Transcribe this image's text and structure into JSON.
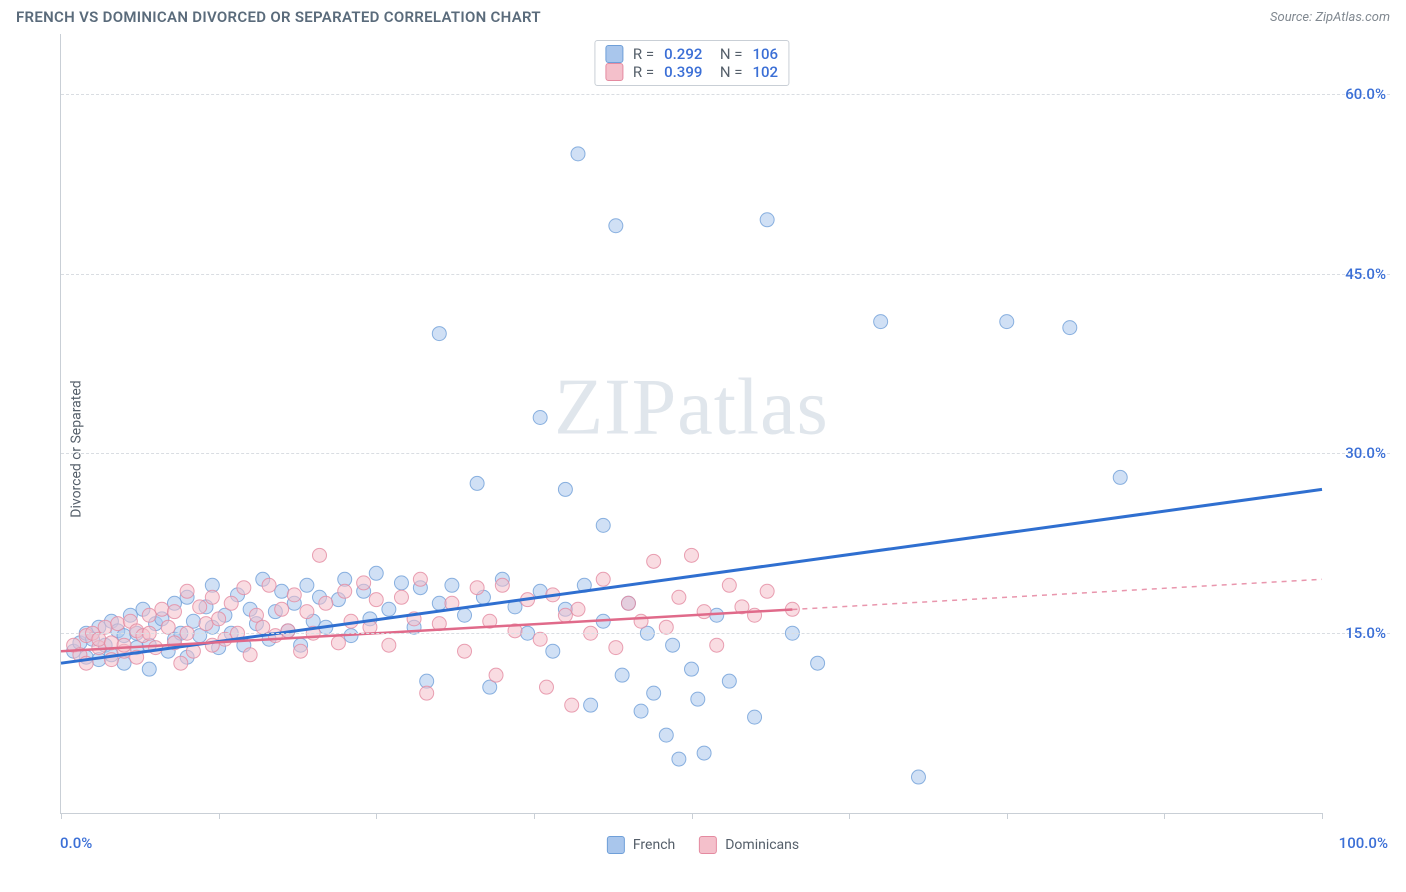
{
  "title": "FRENCH VS DOMINICAN DIVORCED OR SEPARATED CORRELATION CHART",
  "source_label": "Source:",
  "source_name": "ZipAtlas.com",
  "ylabel": "Divorced or Separated",
  "watermark": "ZIPatlas",
  "chart": {
    "type": "scatter",
    "xlim": [
      0,
      100
    ],
    "ylim": [
      0,
      65
    ],
    "xtick_positions": [
      0,
      12.5,
      25,
      37.5,
      50,
      62.5,
      75,
      87.5,
      100
    ],
    "x_min_label": "0.0%",
    "x_max_label": "100.0%",
    "ytick_values": [
      15,
      30,
      45,
      60
    ],
    "ytick_labels": [
      "15.0%",
      "30.0%",
      "45.0%",
      "60.0%"
    ],
    "background_color": "#ffffff",
    "grid_color": "#d9dde2",
    "axis_color": "#c9cfd6",
    "tick_label_color": "#3b6fd6",
    "marker_radius": 7,
    "marker_opacity": 0.55,
    "series": [
      {
        "name": "French",
        "fill": "#a9c6ec",
        "stroke": "#6f9fd8",
        "trend_color": "#2f6fd0",
        "trend_width": 3,
        "trend": {
          "x1": 0,
          "y1": 12.5,
          "x2": 100,
          "y2": 27.0,
          "solid_until_x": 100
        },
        "R": "0.292",
        "N": "106",
        "points": [
          [
            1,
            13.5
          ],
          [
            1.5,
            14.2
          ],
          [
            2,
            13.0
          ],
          [
            2,
            15.0
          ],
          [
            2.5,
            14.5
          ],
          [
            3,
            12.8
          ],
          [
            3,
            15.5
          ],
          [
            3.5,
            14.0
          ],
          [
            4,
            13.2
          ],
          [
            4,
            16.0
          ],
          [
            4.5,
            15.2
          ],
          [
            5,
            12.5
          ],
          [
            5,
            14.8
          ],
          [
            5.5,
            16.5
          ],
          [
            6,
            13.8
          ],
          [
            6,
            15.0
          ],
          [
            6.5,
            17.0
          ],
          [
            7,
            14.0
          ],
          [
            7,
            12.0
          ],
          [
            7.5,
            15.8
          ],
          [
            8,
            16.2
          ],
          [
            8.5,
            13.5
          ],
          [
            9,
            17.5
          ],
          [
            9,
            14.5
          ],
          [
            9.5,
            15.0
          ],
          [
            10,
            18.0
          ],
          [
            10,
            13.0
          ],
          [
            10.5,
            16.0
          ],
          [
            11,
            14.8
          ],
          [
            11.5,
            17.2
          ],
          [
            12,
            15.5
          ],
          [
            12,
            19.0
          ],
          [
            12.5,
            13.8
          ],
          [
            13,
            16.5
          ],
          [
            13.5,
            15.0
          ],
          [
            14,
            18.2
          ],
          [
            14.5,
            14.0
          ],
          [
            15,
            17.0
          ],
          [
            15.5,
            15.8
          ],
          [
            16,
            19.5
          ],
          [
            16.5,
            14.5
          ],
          [
            17,
            16.8
          ],
          [
            17.5,
            18.5
          ],
          [
            18,
            15.2
          ],
          [
            18.5,
            17.5
          ],
          [
            19,
            14.0
          ],
          [
            19.5,
            19.0
          ],
          [
            20,
            16.0
          ],
          [
            20.5,
            18.0
          ],
          [
            21,
            15.5
          ],
          [
            22,
            17.8
          ],
          [
            22.5,
            19.5
          ],
          [
            23,
            14.8
          ],
          [
            24,
            18.5
          ],
          [
            24.5,
            16.2
          ],
          [
            25,
            20.0
          ],
          [
            26,
            17.0
          ],
          [
            27,
            19.2
          ],
          [
            28,
            15.5
          ],
          [
            28.5,
            18.8
          ],
          [
            29,
            11.0
          ],
          [
            30,
            17.5
          ],
          [
            30,
            40.0
          ],
          [
            31,
            19.0
          ],
          [
            32,
            16.5
          ],
          [
            33,
            27.5
          ],
          [
            33.5,
            18.0
          ],
          [
            34,
            10.5
          ],
          [
            35,
            19.5
          ],
          [
            36,
            17.2
          ],
          [
            37,
            15.0
          ],
          [
            38,
            18.5
          ],
          [
            38,
            33.0
          ],
          [
            39,
            13.5
          ],
          [
            40,
            27.0
          ],
          [
            40,
            17.0
          ],
          [
            41,
            55.0
          ],
          [
            41.5,
            19.0
          ],
          [
            42,
            9.0
          ],
          [
            43,
            16.0
          ],
          [
            43,
            24.0
          ],
          [
            44,
            49.0
          ],
          [
            44.5,
            11.5
          ],
          [
            45,
            17.5
          ],
          [
            46,
            8.5
          ],
          [
            46.5,
            15.0
          ],
          [
            47,
            10.0
          ],
          [
            48,
            6.5
          ],
          [
            48.5,
            14.0
          ],
          [
            49,
            4.5
          ],
          [
            50,
            12.0
          ],
          [
            50.5,
            9.5
          ],
          [
            51,
            5.0
          ],
          [
            52,
            16.5
          ],
          [
            53,
            11.0
          ],
          [
            55,
            8.0
          ],
          [
            56,
            49.5
          ],
          [
            58,
            15.0
          ],
          [
            60,
            12.5
          ],
          [
            65,
            41.0
          ],
          [
            68,
            3.0
          ],
          [
            75,
            41.0
          ],
          [
            80,
            40.5
          ],
          [
            84,
            28.0
          ]
        ]
      },
      {
        "name": "Dominicans",
        "fill": "#f4c0cb",
        "stroke": "#e48aa0",
        "trend_color": "#e06a8a",
        "trend_width": 2.5,
        "trend": {
          "x1": 0,
          "y1": 13.5,
          "x2": 100,
          "y2": 19.5,
          "solid_until_x": 58
        },
        "R": "0.399",
        "N": "102",
        "points": [
          [
            1,
            14.0
          ],
          [
            1.5,
            13.2
          ],
          [
            2,
            14.8
          ],
          [
            2,
            12.5
          ],
          [
            2.5,
            15.0
          ],
          [
            3,
            13.8
          ],
          [
            3,
            14.5
          ],
          [
            3.5,
            15.5
          ],
          [
            4,
            12.8
          ],
          [
            4,
            14.2
          ],
          [
            4.5,
            15.8
          ],
          [
            5,
            13.5
          ],
          [
            5,
            14.0
          ],
          [
            5.5,
            16.0
          ],
          [
            6,
            15.2
          ],
          [
            6,
            13.0
          ],
          [
            6.5,
            14.8
          ],
          [
            7,
            16.5
          ],
          [
            7,
            15.0
          ],
          [
            7.5,
            13.8
          ],
          [
            8,
            17.0
          ],
          [
            8.5,
            15.5
          ],
          [
            9,
            14.2
          ],
          [
            9,
            16.8
          ],
          [
            9.5,
            12.5
          ],
          [
            10,
            18.5
          ],
          [
            10,
            15.0
          ],
          [
            10.5,
            13.5
          ],
          [
            11,
            17.2
          ],
          [
            11.5,
            15.8
          ],
          [
            12,
            14.0
          ],
          [
            12,
            18.0
          ],
          [
            12.5,
            16.2
          ],
          [
            13,
            14.5
          ],
          [
            13.5,
            17.5
          ],
          [
            14,
            15.0
          ],
          [
            14.5,
            18.8
          ],
          [
            15,
            13.2
          ],
          [
            15.5,
            16.5
          ],
          [
            16,
            15.5
          ],
          [
            16.5,
            19.0
          ],
          [
            17,
            14.8
          ],
          [
            17.5,
            17.0
          ],
          [
            18,
            15.2
          ],
          [
            18.5,
            18.2
          ],
          [
            19,
            13.5
          ],
          [
            19.5,
            16.8
          ],
          [
            20,
            15.0
          ],
          [
            20.5,
            21.5
          ],
          [
            21,
            17.5
          ],
          [
            22,
            14.2
          ],
          [
            22.5,
            18.5
          ],
          [
            23,
            16.0
          ],
          [
            24,
            19.2
          ],
          [
            24.5,
            15.5
          ],
          [
            25,
            17.8
          ],
          [
            26,
            14.0
          ],
          [
            27,
            18.0
          ],
          [
            28,
            16.2
          ],
          [
            28.5,
            19.5
          ],
          [
            29,
            10.0
          ],
          [
            30,
            15.8
          ],
          [
            31,
            17.5
          ],
          [
            32,
            13.5
          ],
          [
            33,
            18.8
          ],
          [
            34,
            16.0
          ],
          [
            34.5,
            11.5
          ],
          [
            35,
            19.0
          ],
          [
            36,
            15.2
          ],
          [
            37,
            17.8
          ],
          [
            38,
            14.5
          ],
          [
            38.5,
            10.5
          ],
          [
            39,
            18.2
          ],
          [
            40,
            16.5
          ],
          [
            40.5,
            9.0
          ],
          [
            41,
            17.0
          ],
          [
            42,
            15.0
          ],
          [
            43,
            19.5
          ],
          [
            44,
            13.8
          ],
          [
            45,
            17.5
          ],
          [
            46,
            16.0
          ],
          [
            47,
            21.0
          ],
          [
            48,
            15.5
          ],
          [
            49,
            18.0
          ],
          [
            50,
            21.5
          ],
          [
            51,
            16.8
          ],
          [
            52,
            14.0
          ],
          [
            53,
            19.0
          ],
          [
            54,
            17.2
          ],
          [
            55,
            16.5
          ],
          [
            56,
            18.5
          ],
          [
            58,
            17.0
          ]
        ]
      }
    ],
    "bottom_legend": [
      {
        "label": "French",
        "fill": "#a9c6ec",
        "stroke": "#6f9fd8"
      },
      {
        "label": "Dominicans",
        "fill": "#f4c0cb",
        "stroke": "#e48aa0"
      }
    ]
  }
}
